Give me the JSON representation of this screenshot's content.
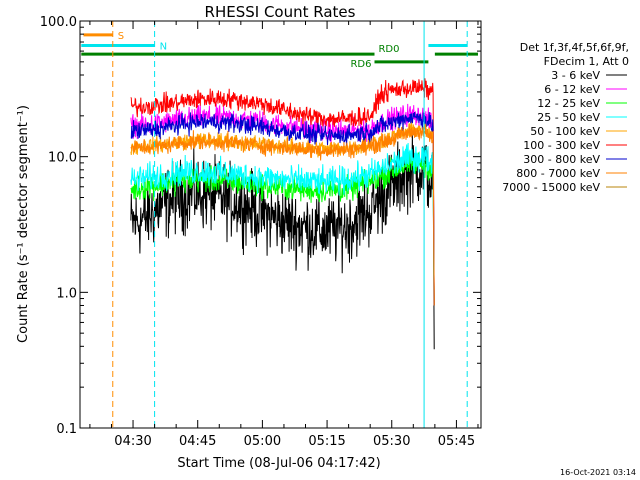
{
  "chart_data": {
    "type": "line",
    "title": "RHESSI Count Rates",
    "xlabel": "Start Time (08-Jul-06 04:17:42)",
    "ylabel": "Count Rate (s⁻¹ detector segment⁻¹)",
    "x_unit": "minutes of day (UT)",
    "xlim": [
      257.7,
      350.7
    ],
    "ylim": [
      0.1,
      100
    ],
    "yscale": "log",
    "x_ticks": [
      {
        "value": 270,
        "label": "04:30"
      },
      {
        "value": 285,
        "label": "04:45"
      },
      {
        "value": 300,
        "label": "05:00"
      },
      {
        "value": 315,
        "label": "05:15"
      },
      {
        "value": 330,
        "label": "05:30"
      },
      {
        "value": 345,
        "label": "05:45"
      }
    ],
    "y_ticks": [
      {
        "value": 0.1,
        "label": "0.1"
      },
      {
        "value": 1,
        "label": "1.0"
      },
      {
        "value": 10,
        "label": "10.0"
      },
      {
        "value": 100,
        "label": "100.0"
      }
    ],
    "legend_header": [
      "Det 1f,3f,4f,5f,6f,9f,",
      "FDecim 1, Att 0"
    ],
    "legend_placement": "right",
    "timestamp": "16-Oct-2021 03:14",
    "vlines": [
      {
        "x": 265.3,
        "color": "#ff8c00",
        "style": "dashed"
      },
      {
        "x": 275.0,
        "color": "#00e5ee",
        "style": "dashed"
      },
      {
        "x": 337.5,
        "color": "#00e5ee",
        "style": "solid"
      },
      {
        "x": 347.5,
        "color": "#00e5ee",
        "style": "dashed"
      }
    ],
    "flag_bars": [
      {
        "label": "S",
        "color": "#ff8c00",
        "y": 79,
        "segments": [
          [
            258.5,
            265.3
          ]
        ]
      },
      {
        "label": "N",
        "color": "#00e5ee",
        "y": 66,
        "segments": [
          [
            258.0,
            275.0
          ],
          [
            338.5,
            347.5
          ]
        ]
      },
      {
        "label": "RD0",
        "color": "#008000",
        "y": 57,
        "segments": [
          [
            258.0,
            326.0
          ],
          [
            340.0,
            350.0
          ]
        ]
      },
      {
        "label": "RD6",
        "color": "#008000",
        "y": 50,
        "segments": [
          [
            326.0,
            338.5
          ]
        ]
      }
    ],
    "series": [
      {
        "name": "3 - 6 keV",
        "color": "#000000",
        "noise": 0.13,
        "end": 0.38,
        "x": [
          269.5,
          272,
          276,
          280,
          285,
          290,
          295,
          300,
          305,
          310,
          315,
          320,
          325,
          330,
          334,
          337,
          339.7
        ],
        "values": [
          3.2,
          3.4,
          4.2,
          5.0,
          5.4,
          5.0,
          4.5,
          3.8,
          3.3,
          3.0,
          2.8,
          3.1,
          4.0,
          6.0,
          7.8,
          8.3,
          6.0
        ]
      },
      {
        "name": "6 - 12 keV",
        "color": "#ff00ff",
        "noise": 0.04,
        "end": 0.8,
        "x": [
          269.5,
          272,
          276,
          280,
          285,
          290,
          295,
          300,
          305,
          310,
          315,
          320,
          325,
          326,
          330,
          334,
          337,
          339.7
        ],
        "values": [
          17,
          17,
          17.5,
          18.5,
          19.5,
          19.5,
          19,
          18,
          17,
          16,
          15.5,
          15.5,
          16,
          17,
          19,
          20.5,
          20,
          17
        ]
      },
      {
        "name": "12 - 25 keV",
        "color": "#00ff00",
        "noise": 0.045,
        "end": 0.8,
        "x": [
          269.5,
          272,
          276,
          280,
          285,
          290,
          295,
          300,
          305,
          310,
          315,
          320,
          325,
          330,
          334,
          337,
          339.7
        ],
        "values": [
          5.7,
          5.9,
          6.2,
          6.6,
          6.8,
          6.6,
          6.4,
          6.1,
          5.9,
          5.7,
          5.6,
          5.8,
          6.5,
          7.8,
          8.8,
          9.0,
          8.0
        ]
      },
      {
        "name": "25 - 50 keV",
        "color": "#00ffff",
        "noise": 0.05,
        "end": 0.8,
        "x": [
          269.5,
          272,
          276,
          280,
          285,
          290,
          295,
          300,
          305,
          310,
          315,
          320,
          325,
          330,
          334,
          337,
          339.7
        ],
        "values": [
          6.7,
          6.9,
          7.2,
          7.6,
          7.8,
          7.6,
          7.3,
          7.0,
          6.8,
          6.6,
          6.5,
          6.8,
          7.4,
          8.8,
          9.8,
          10.0,
          9.0
        ]
      },
      {
        "name": "50 - 100 keV",
        "color": "#ffa500",
        "noise": 0.03,
        "end": 0.8,
        "x": [
          269.5,
          272,
          276,
          280,
          285,
          290,
          295,
          300,
          305,
          310,
          315,
          320,
          325,
          330,
          334,
          337,
          339.7
        ],
        "values": [
          11.8,
          12,
          12.2,
          12.8,
          13.2,
          13.1,
          12.8,
          12.3,
          12,
          11.6,
          11.4,
          11.6,
          12.2,
          14,
          15.5,
          16,
          14
        ]
      },
      {
        "name": "100 - 300 keV",
        "color": "#ff0000",
        "noise": 0.035,
        "end": 0.8,
        "x": [
          269.5,
          272,
          276,
          280,
          285,
          290,
          295,
          300,
          305,
          310,
          315,
          320,
          325,
          326,
          327,
          330,
          334,
          337,
          339.7
        ],
        "values": [
          23.5,
          23.5,
          24,
          25,
          26.5,
          27,
          26,
          24.5,
          22,
          20,
          19,
          19,
          20,
          21.5,
          28,
          31,
          32,
          32,
          30
        ]
      },
      {
        "name": "300 - 800 keV",
        "color": "#0000cd",
        "noise": 0.035,
        "end": 0.8,
        "x": [
          269.5,
          272,
          276,
          280,
          285,
          290,
          295,
          300,
          305,
          310,
          315,
          320,
          325,
          326,
          330,
          334,
          337,
          339.7
        ],
        "values": [
          15.5,
          15.5,
          16,
          17,
          18,
          18,
          17.5,
          16.5,
          15.5,
          14.8,
          14.2,
          14.5,
          15.2,
          16,
          18,
          19.5,
          19.5,
          17
        ]
      },
      {
        "name": "800 - 7000 keV",
        "color": "#ff8000",
        "noise": 0.03,
        "end": 0.8,
        "x": [
          269.5,
          272,
          276,
          280,
          285,
          290,
          295,
          300,
          305,
          310,
          315,
          320,
          325,
          330,
          334,
          337,
          339.7
        ],
        "values": [
          11.5,
          11.7,
          11.9,
          12.5,
          12.9,
          12.8,
          12.5,
          12,
          11.7,
          11.3,
          11.1,
          11.3,
          11.9,
          13.5,
          15,
          15.5,
          13.5
        ]
      },
      {
        "name": "7000 - 15000 keV",
        "color": "#b8860b",
        "noise": 0.0,
        "end": null,
        "x": [],
        "values": []
      }
    ]
  }
}
